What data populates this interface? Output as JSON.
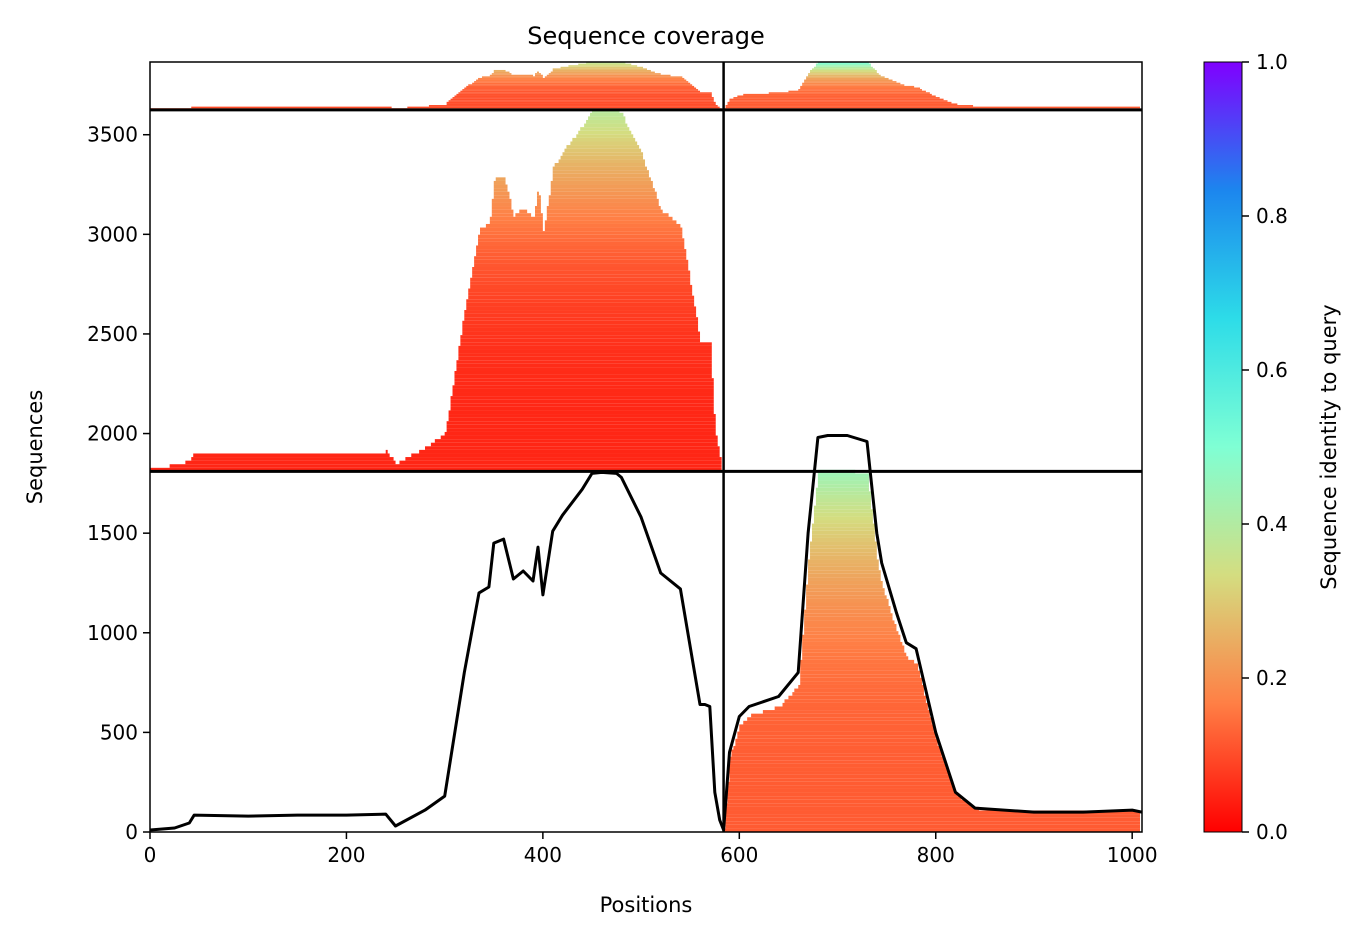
{
  "chart_data": {
    "type": "heatmap",
    "title": "Sequence coverage",
    "xlabel": "Positions",
    "ylabel": "Sequences",
    "xlim": [
      0,
      1010
    ],
    "ylim": [
      0,
      3865
    ],
    "xticks": [
      0,
      200,
      400,
      600,
      800,
      1000
    ],
    "yticks": [
      0,
      500,
      1000,
      1500,
      2000,
      2500,
      3000,
      3500
    ],
    "colorbar": {
      "label": "Sequence identity to query",
      "range": [
        0,
        1
      ],
      "ticks": [
        0.0,
        0.2,
        0.4,
        0.6,
        0.8,
        1.0
      ],
      "tick_labels": [
        "0.0",
        "0.2",
        "0.4",
        "0.6",
        "0.8",
        "1.0"
      ],
      "colormap": "rainbow_r",
      "stops": [
        "#ff0000",
        "#ff7f45",
        "#d4dd80",
        "#7fffd4",
        "#2ddce8",
        "#1c86ee",
        "#8000ff"
      ]
    },
    "dividers": {
      "vertical_position": 584,
      "horizontal_sequences": [
        1810,
        3625
      ]
    },
    "blocks": [
      {
        "name": "block-lower-right",
        "x": [
          584,
          1010
        ],
        "rows": [
          0,
          1810
        ],
        "identity_top": 0.45,
        "identity_bottom": 0.12
      },
      {
        "name": "block-middle-left",
        "x": [
          0,
          584
        ],
        "rows": [
          1810,
          3625
        ],
        "identity_top": 0.4,
        "identity_bottom": 0.05
      },
      {
        "name": "block-top-left",
        "x": [
          0,
          584
        ],
        "rows": [
          3625,
          3865
        ],
        "identity_top": 0.4,
        "identity_bottom": 0.1
      },
      {
        "name": "block-top-right",
        "x": [
          584,
          1010
        ],
        "rows": [
          3625,
          3865
        ],
        "identity_top": 0.55,
        "identity_bottom": 0.12
      }
    ],
    "series": [
      {
        "type": "line",
        "x": [
          0,
          25,
          40,
          45,
          100,
          150,
          200,
          240,
          250,
          280,
          300,
          320,
          335,
          345,
          350,
          360,
          370,
          380,
          390,
          395,
          400,
          410,
          420,
          440,
          450,
          460,
          475,
          480,
          500,
          520,
          540,
          560,
          565,
          570,
          575,
          580,
          584,
          590,
          600,
          610,
          640,
          660,
          670,
          680,
          690,
          700,
          710,
          730,
          740,
          745,
          760,
          770,
          780,
          800,
          820,
          840,
          900,
          950,
          1000,
          1010
        ],
        "y": [
          10,
          20,
          45,
          85,
          80,
          85,
          85,
          90,
          30,
          110,
          180,
          800,
          1200,
          1230,
          1450,
          1470,
          1270,
          1310,
          1260,
          1430,
          1190,
          1510,
          1590,
          1720,
          1800,
          1805,
          1800,
          1780,
          1580,
          1300,
          1220,
          640,
          640,
          630,
          200,
          60,
          10,
          400,
          580,
          630,
          680,
          800,
          1500,
          1980,
          1990,
          1990,
          1990,
          1960,
          1500,
          1350,
          1100,
          950,
          920,
          500,
          200,
          120,
          100,
          100,
          110,
          100
        ]
      }
    ]
  }
}
